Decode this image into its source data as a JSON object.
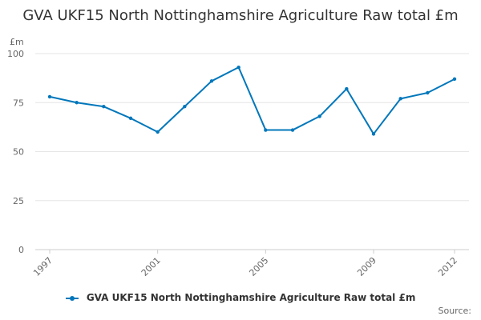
{
  "chart_data": {
    "type": "line",
    "title": "GVA UKF15 North Nottinghamshire Agriculture Raw total £m",
    "ylabel": "£m",
    "xlabel": "",
    "ylim": [
      0,
      100
    ],
    "yticks": [
      "0",
      "25",
      "50",
      "75",
      "100"
    ],
    "xlim": [
      1997,
      2012
    ],
    "xticks": [
      "1997",
      "2001",
      "2005",
      "2009",
      "2012"
    ],
    "grid": "horizontal",
    "legend_position": "bottom",
    "series": [
      {
        "name": "GVA UKF15 North Nottinghamshire Agriculture Raw total £m",
        "color": "#0077bb",
        "x": [
          1997,
          1998,
          1999,
          2000,
          2001,
          2002,
          2003,
          2004,
          2005,
          2006,
          2007,
          2008,
          2009,
          2010,
          2011,
          2012
        ],
        "values": [
          78,
          75,
          73,
          67,
          60,
          73,
          86,
          93,
          61,
          61,
          68,
          82,
          59,
          77,
          80,
          87
        ]
      }
    ]
  },
  "footer": {
    "source_label": "Source:"
  }
}
